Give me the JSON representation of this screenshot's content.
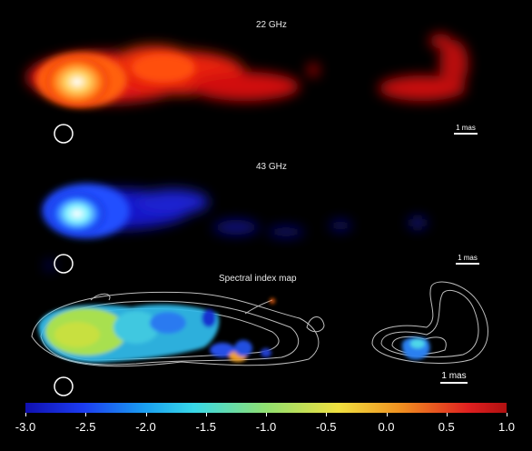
{
  "panels": {
    "top_title": "22 GHz",
    "middle_title": "43 GHz",
    "bottom_title": "Spectral index map"
  },
  "scale_bar_label": "1 mas",
  "colorbar": {
    "ticks": [
      "-3.0",
      "-2.5",
      "-2.0",
      "-1.5",
      "-1.0",
      "-0.5",
      "0.0",
      "0.5",
      "1.0"
    ]
  }
}
